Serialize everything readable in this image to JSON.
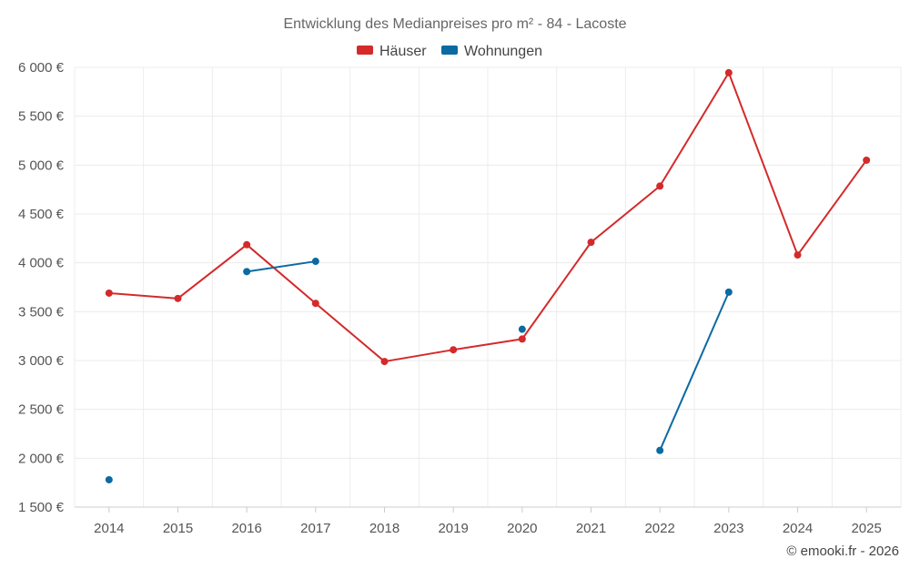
{
  "chart_data": {
    "type": "line",
    "title": "Entwicklung des Medianpreises pro m² - 84 - Lacoste",
    "categories": [
      "2014",
      "2015",
      "2016",
      "2017",
      "2018",
      "2019",
      "2020",
      "2021",
      "2022",
      "2023",
      "2024",
      "2025"
    ],
    "ylim": [
      1500,
      6000
    ],
    "yticks": [
      1500,
      2000,
      2500,
      3000,
      3500,
      4000,
      4500,
      5000,
      5500,
      6000
    ],
    "ytick_labels": [
      "1 500 €",
      "2 000 €",
      "2 500 €",
      "3 000 €",
      "3 500 €",
      "4 000 €",
      "4 500 €",
      "5 000 €",
      "5 500 €",
      "6 000 €"
    ],
    "grid": true,
    "legend_position": "top-center",
    "series": [
      {
        "name": "Häuser",
        "color": "#d42a2a",
        "values": [
          3690,
          3635,
          4185,
          3585,
          2990,
          3110,
          3220,
          4210,
          4785,
          5945,
          4080,
          5050
        ]
      },
      {
        "name": "Wohnungen",
        "color": "#0b6aa2",
        "values": [
          1780,
          null,
          3910,
          4015,
          null,
          null,
          3320,
          null,
          2080,
          3700,
          null,
          null
        ]
      }
    ]
  },
  "credit": "© emooki.fr - 2026"
}
